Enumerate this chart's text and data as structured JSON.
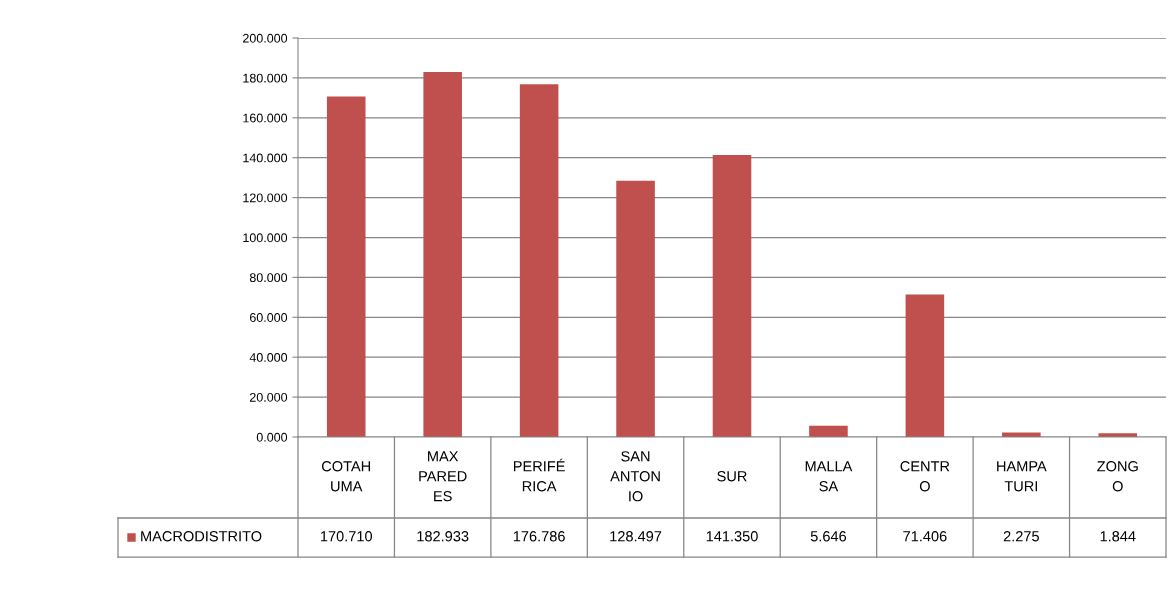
{
  "chart_data": {
    "type": "bar",
    "categories": [
      "COTAHUMA",
      "MAX PAREDES",
      "PERIFÉRICA",
      "SAN ANTONIO",
      "SUR",
      "MALLASA",
      "CENTRO",
      "HAMPATURI",
      "ZONGO"
    ],
    "series": [
      {
        "name": "MACRODISTRITO",
        "color": "#c0504d",
        "values": [
          170.71,
          182.933,
          176.786,
          128.497,
          141.35,
          5.646,
          71.406,
          2.275,
          1.844
        ],
        "value_labels": [
          "170.710",
          "182.933",
          "176.786",
          "128.497",
          "141.350",
          "5.646",
          "71.406",
          "2.275",
          "1.844"
        ]
      }
    ],
    "ylim": [
      0,
      200
    ],
    "yticks": [
      {
        "value": 0,
        "label": "0.000"
      },
      {
        "value": 20,
        "label": "20.000"
      },
      {
        "value": 40,
        "label": "40.000"
      },
      {
        "value": 60,
        "label": "60.000"
      },
      {
        "value": 80,
        "label": "80.000"
      },
      {
        "value": 100,
        "label": "100.000"
      },
      {
        "value": 120,
        "label": "120.000"
      },
      {
        "value": 140,
        "label": "140.000"
      },
      {
        "value": 160,
        "label": "160.000"
      },
      {
        "value": 180,
        "label": "180.000"
      },
      {
        "value": 200,
        "label": "200.000"
      }
    ],
    "grid": "y",
    "legend": "bottom"
  }
}
